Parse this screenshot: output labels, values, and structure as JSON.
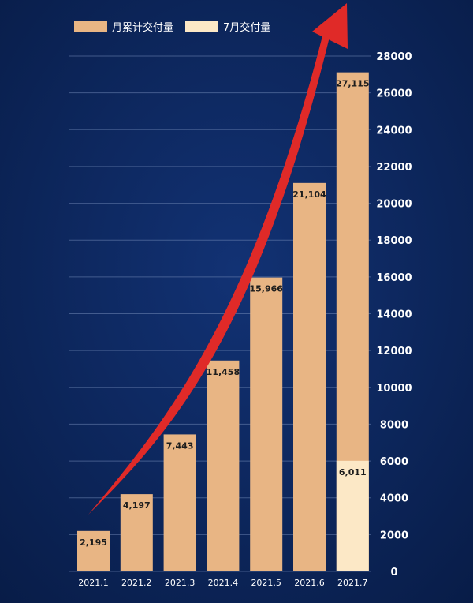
{
  "colors": {
    "background": "#0b2458",
    "cumulative": "#e8b584",
    "monthly": "#fce8c6",
    "arrow": "#e02a28",
    "text": "#ffffff",
    "value_text": "#1d1d1d",
    "grid": "#6f86b4"
  },
  "legend": [
    {
      "key": "cumulative",
      "label": "月累计交付量"
    },
    {
      "key": "monthly",
      "label": "7月交付量"
    }
  ],
  "chart_data": {
    "type": "bar",
    "categories": [
      "2021.1",
      "2021.2",
      "2021.3",
      "2021.4",
      "2021.5",
      "2021.6",
      "2021.7"
    ],
    "series": [
      {
        "name": "月累计交付量",
        "values": [
          2195,
          4197,
          7443,
          11458,
          15966,
          21104,
          27115
        ]
      },
      {
        "name": "7月交付量",
        "values": [
          null,
          null,
          null,
          null,
          null,
          null,
          6011
        ]
      }
    ],
    "value_labels": [
      "2,195",
      "4,197",
      "7,443",
      "11,458",
      "15,966",
      "21,104",
      "27,115"
    ],
    "monthly_label": "6,011",
    "ylim": [
      0,
      28000
    ],
    "yticks": [
      0,
      2000,
      4000,
      6000,
      8000,
      10000,
      12000,
      14000,
      16000,
      18000,
      20000,
      22000,
      24000,
      26000,
      28000
    ],
    "y_axis_position": "right",
    "grid": true,
    "legend_position": "top-left",
    "trend_arrow": true
  }
}
